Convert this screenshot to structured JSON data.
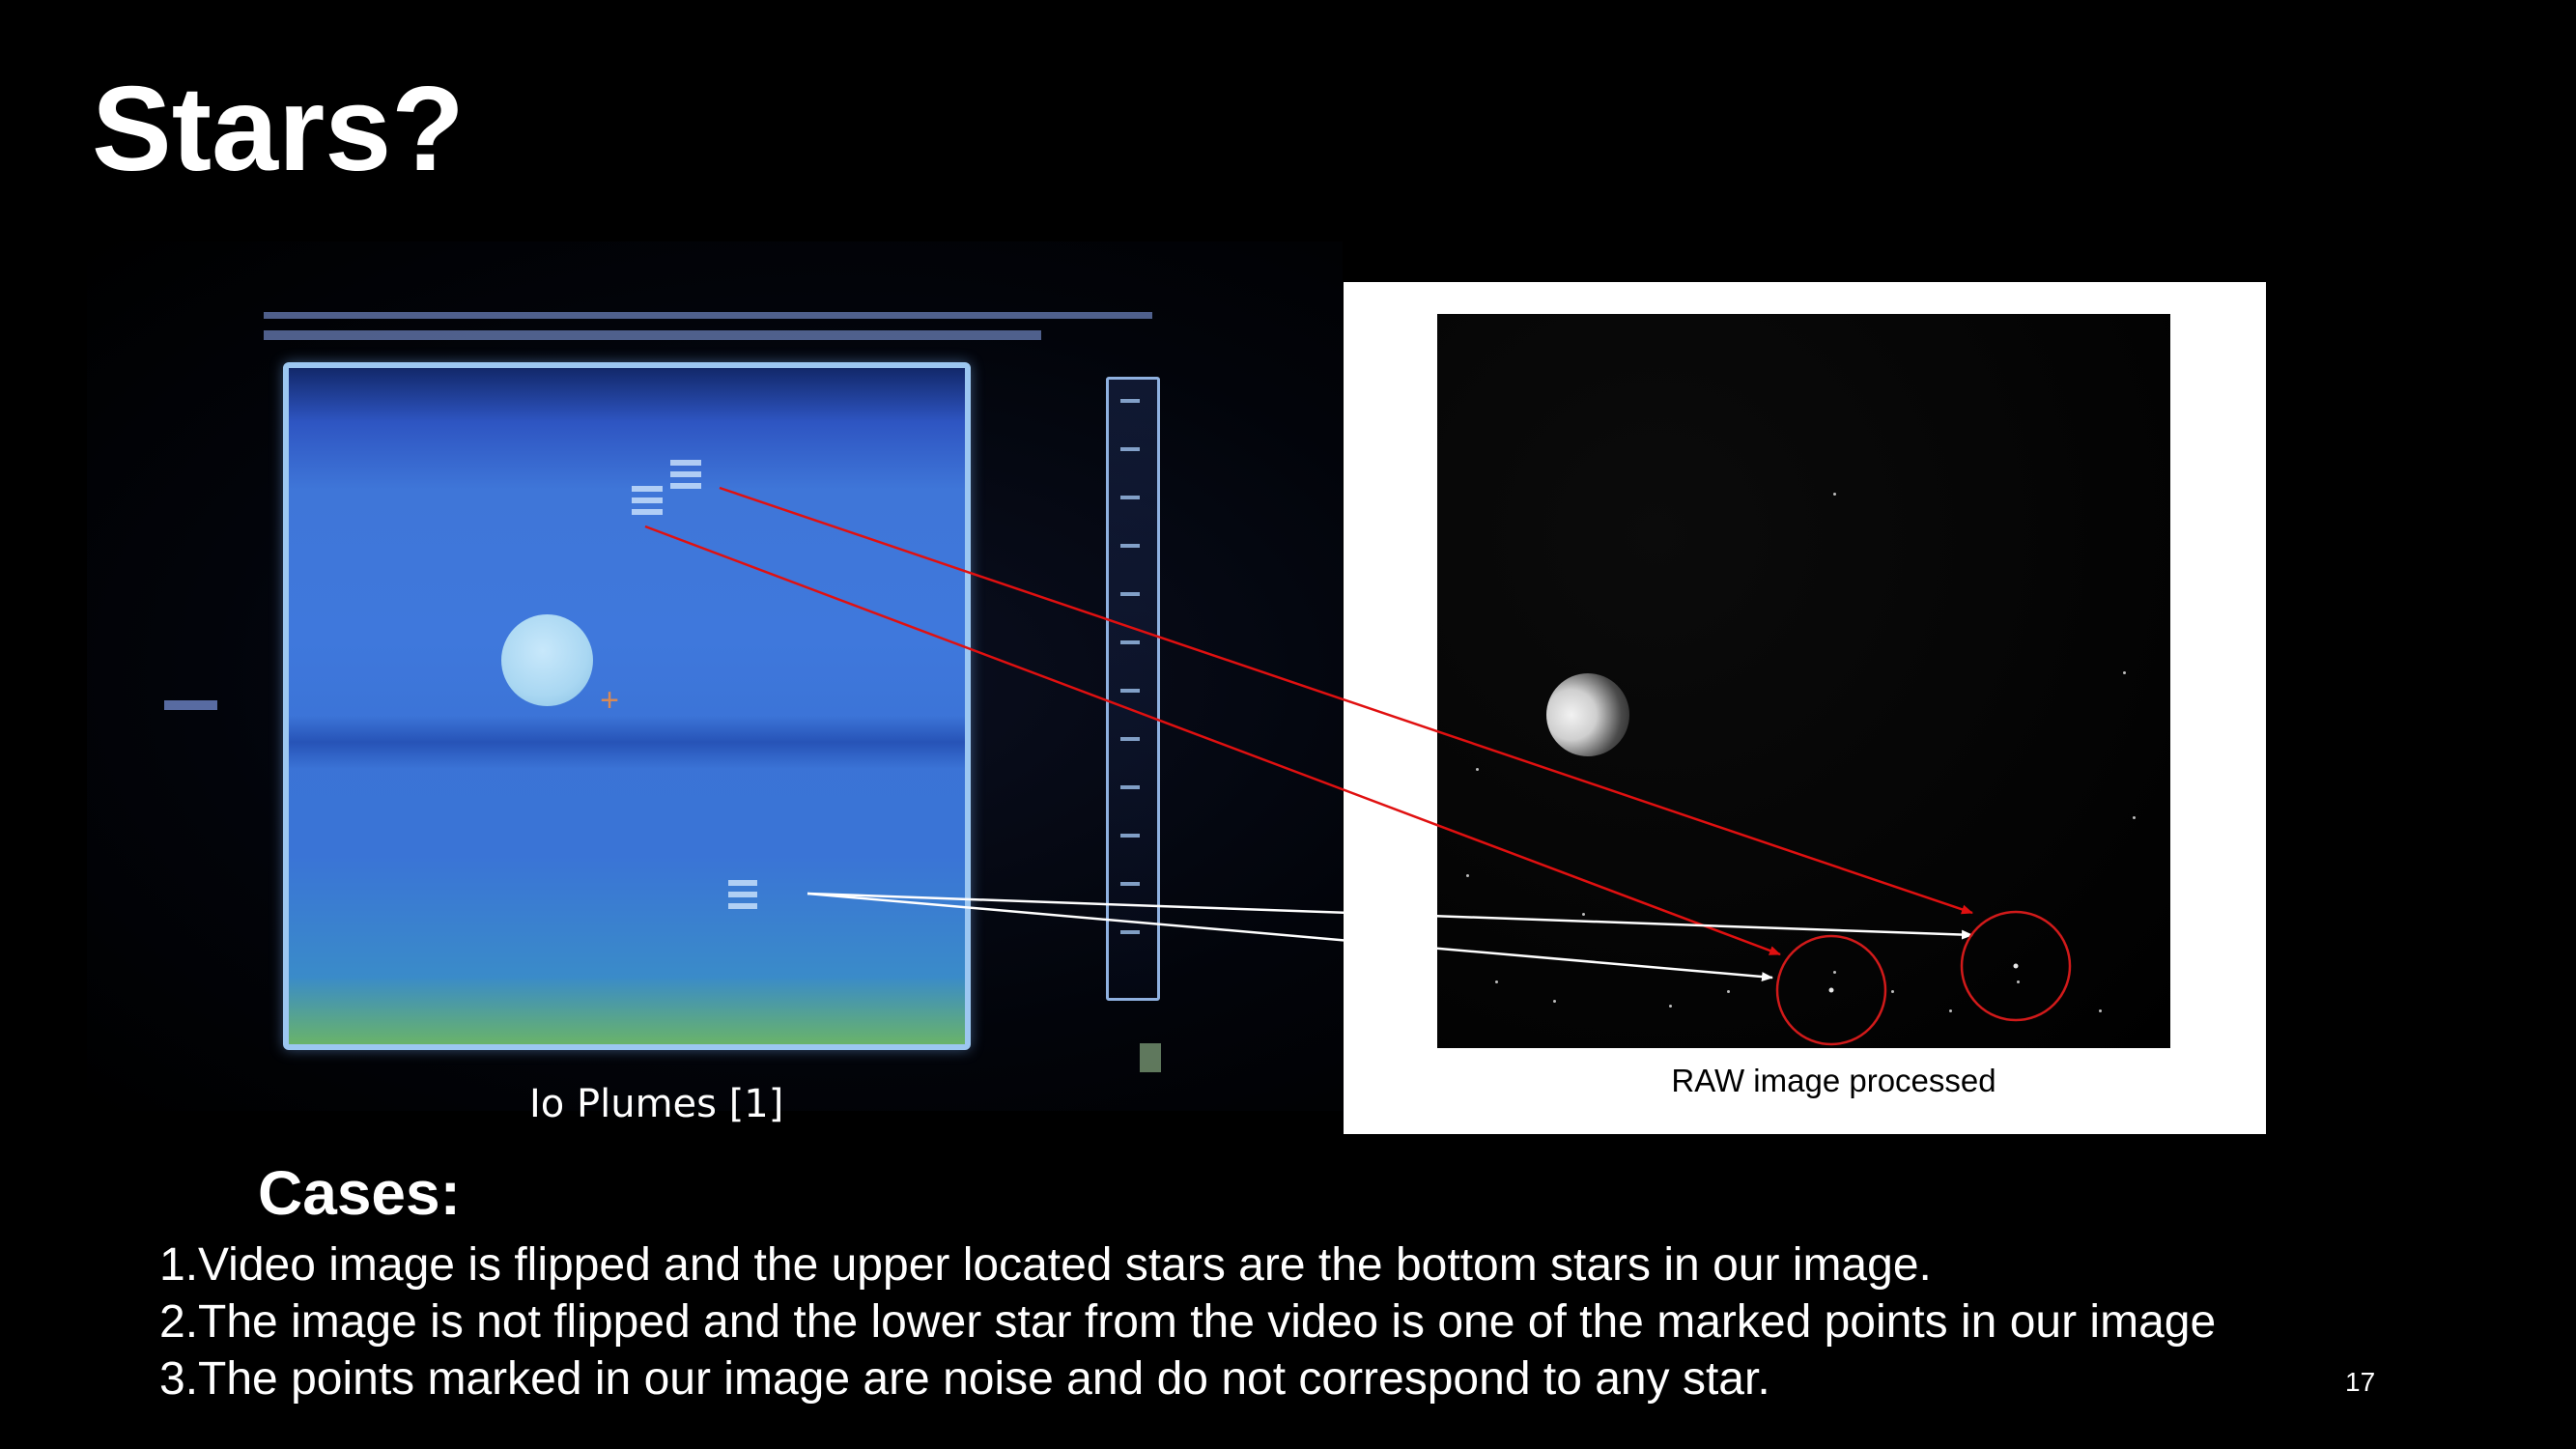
{
  "slide": {
    "title": "Stars?",
    "page_number": "17"
  },
  "video_figure": {
    "caption": "Io Plumes [1]"
  },
  "raw_figure": {
    "caption": "RAW image processed"
  },
  "cases": {
    "heading": "Cases:",
    "items": [
      "1.Video image is flipped and the upper located stars are the bottom stars in our image.",
      "2.The image is not flipped and the lower star from the video is one of the marked points in our image",
      "3.The points marked in our image are noise and do not correspond to any star."
    ]
  },
  "colors": {
    "background": "#000000",
    "arrow_red": "#e01010",
    "arrow_white": "#ffffff",
    "circle_red": "#d11a1a"
  }
}
